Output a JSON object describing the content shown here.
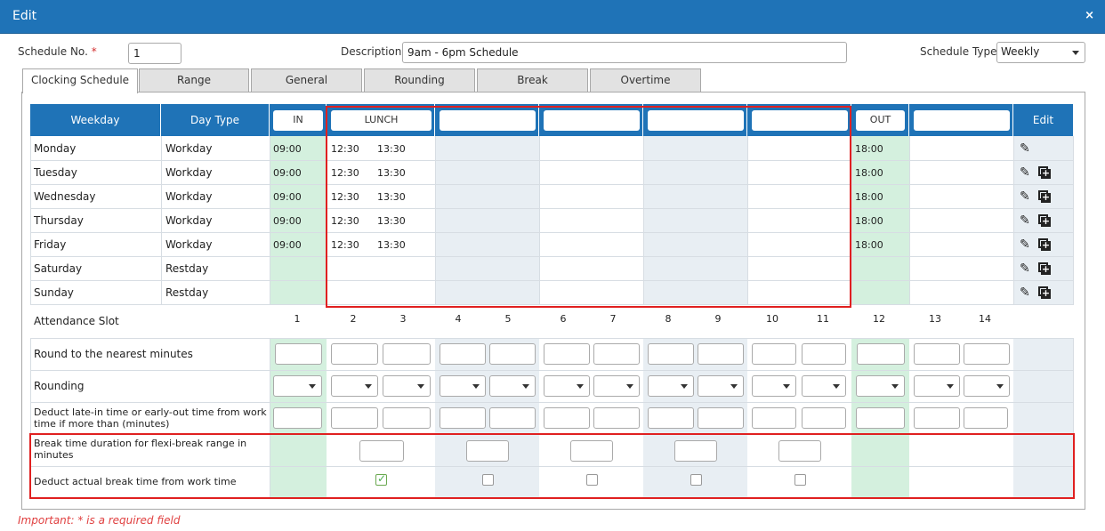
{
  "dialog": {
    "title": "Edit",
    "close_label": "×"
  },
  "form": {
    "schedule_no_label": "Schedule No.",
    "required_mark": "*",
    "schedule_no_value": "1",
    "description_label": "Description",
    "description_value": "9am - 6pm Schedule",
    "schedule_type_label": "Schedule Type",
    "schedule_type_value": "Weekly"
  },
  "tabs": [
    "Clocking Schedule",
    "Range",
    "General",
    "Rounding",
    "Break",
    "Overtime"
  ],
  "table": {
    "headers": {
      "weekday": "Weekday",
      "day_type": "Day Type",
      "in": "IN",
      "lunch": "LUNCH",
      "out": "OUT",
      "edit": "Edit"
    },
    "rows": [
      {
        "weekday": "Monday",
        "day_type": "Workday",
        "in": "09:00",
        "lunch_start": "12:30",
        "lunch_end": "13:30",
        "out": "18:00"
      },
      {
        "weekday": "Tuesday",
        "day_type": "Workday",
        "in": "09:00",
        "lunch_start": "12:30",
        "lunch_end": "13:30",
        "out": "18:00"
      },
      {
        "weekday": "Wednesday",
        "day_type": "Workday",
        "in": "09:00",
        "lunch_start": "12:30",
        "lunch_end": "13:30",
        "out": "18:00"
      },
      {
        "weekday": "Thursday",
        "day_type": "Workday",
        "in": "09:00",
        "lunch_start": "12:30",
        "lunch_end": "13:30",
        "out": "18:00"
      },
      {
        "weekday": "Friday",
        "day_type": "Workday",
        "in": "09:00",
        "lunch_start": "12:30",
        "lunch_end": "13:30",
        "out": "18:00"
      },
      {
        "weekday": "Saturday",
        "day_type": "Restday",
        "in": "",
        "lunch_start": "",
        "lunch_end": "",
        "out": ""
      },
      {
        "weekday": "Sunday",
        "day_type": "Restday",
        "in": "",
        "lunch_start": "",
        "lunch_end": "",
        "out": ""
      }
    ]
  },
  "settings": {
    "attendance_slot_label": "Attendance Slot",
    "slots": [
      "1",
      "2",
      "3",
      "4",
      "5",
      "6",
      "7",
      "8",
      "9",
      "10",
      "11",
      "12",
      "13",
      "14"
    ],
    "round_label": "Round to the nearest minutes",
    "rounding_label": "Rounding",
    "deduct_late_label_1": "Deduct late-in time or early-out time from work",
    "deduct_late_label_2": "time if more than (minutes)",
    "break_duration_label_1": "Break time duration for flexi-break range in",
    "break_duration_label_2": "minutes",
    "deduct_break_label": "Deduct actual break time from work time",
    "deduct_break_checked": [
      true,
      false,
      false,
      false,
      false
    ]
  },
  "footer": {
    "important_note": "Important: * is a required field"
  },
  "colors": {
    "header_blue": "#1f73b7",
    "in_out_green": "#d4f0de",
    "alt_blue": "#e8eef3",
    "highlight_red": "#e02020"
  }
}
